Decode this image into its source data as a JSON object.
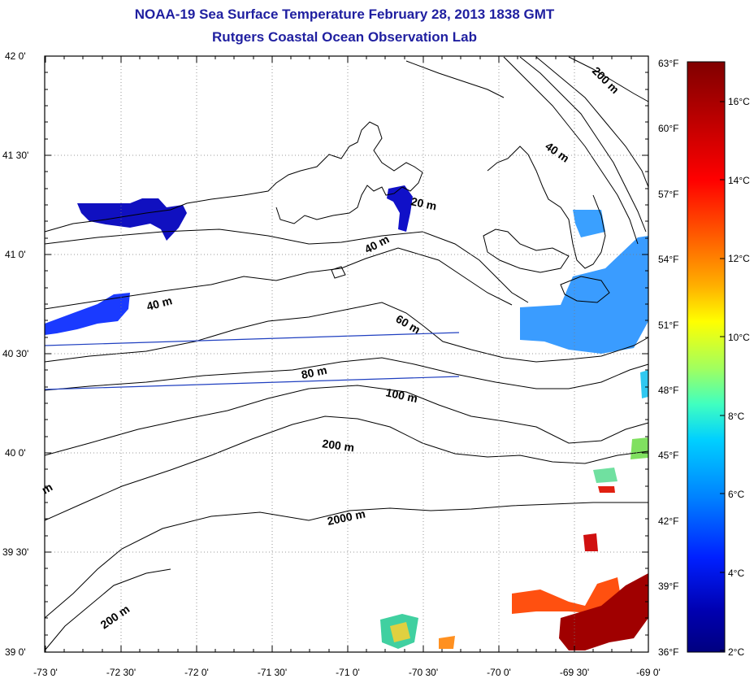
{
  "title": "NOAA-19 Sea Surface Temperature February 28, 2013 1838 GMT",
  "subtitle": "Rutgers Coastal Ocean Observation Lab",
  "lat_labels": [
    "42 0'",
    "41 30'",
    "41 0'",
    "40 30'",
    "40 0'",
    "39 30'",
    "39 0'"
  ],
  "lon_labels": [
    "-73 0'",
    "-72 30'",
    "-72 0'",
    "-71 30'",
    "-71 0'",
    "-70 30'",
    "-70 0'",
    "-69 30'",
    "-69 0'"
  ],
  "map_extent": {
    "lon": [
      -73.0,
      -69.0
    ],
    "lat": [
      39.0,
      42.0
    ]
  },
  "colorbar": {
    "celsius_labels": [
      "16°C",
      "14°C",
      "12°C",
      "10°C",
      "8°C",
      "6°C",
      "4°C",
      "2°C"
    ],
    "fahrenheit_labels": [
      "63°F",
      "60°F",
      "57°F",
      "54°F",
      "51°F",
      "48°F",
      "45°F",
      "42°F",
      "39°F",
      "36°F"
    ],
    "colors": [
      "#800000",
      "#b00000",
      "#ff0000",
      "#ff6000",
      "#ffb000",
      "#ffff00",
      "#a0ff60",
      "#40ffc0",
      "#00d0ff",
      "#0080ff",
      "#0020ff",
      "#0000b0",
      "#000080"
    ]
  },
  "contour_labels": [
    "200 m",
    "40 m",
    "20 m",
    "40 m",
    "40 m",
    "60 m",
    "80 m",
    "100 m",
    "200 m",
    "2000 m",
    "200 m",
    "m"
  ]
}
